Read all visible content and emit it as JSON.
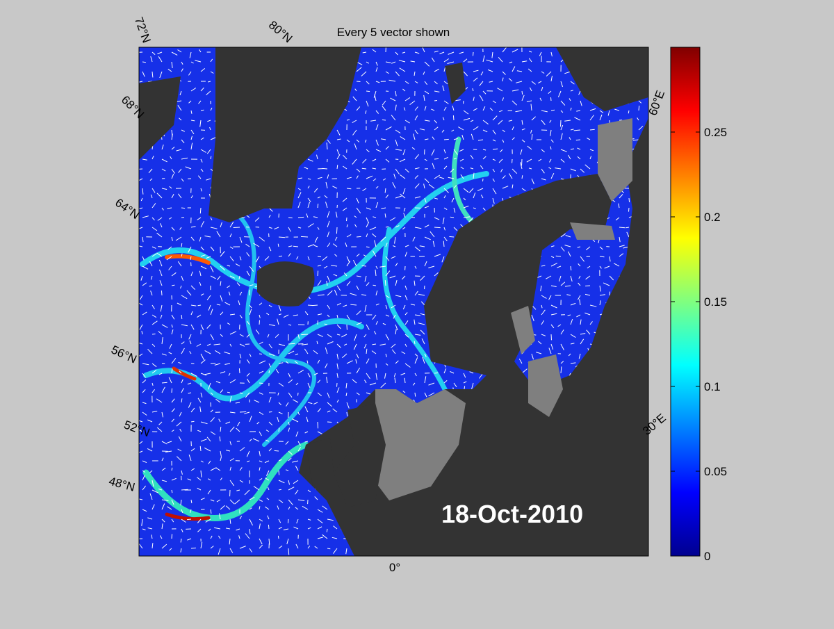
{
  "title": "Every 5 vector shown",
  "date": "18-Oct-2010",
  "map_labels": {
    "lat": [
      "72°N",
      "68°N",
      "64°N",
      "56°N",
      "52°N",
      "48°N"
    ],
    "top": "80°N",
    "bottom": "0°",
    "right": [
      "60°E",
      "30°E"
    ]
  },
  "colorbar": {
    "clim": [
      0,
      0.3
    ],
    "ticks": [
      0,
      0.05,
      0.1,
      0.15,
      0.2,
      0.25
    ]
  }
}
